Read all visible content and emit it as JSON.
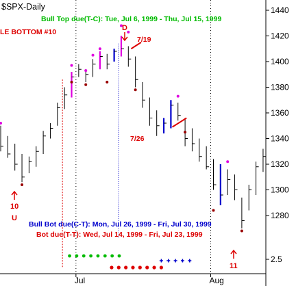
{
  "chart_data": {
    "type": "line",
    "title": "$SPX-Daily",
    "colors": {
      "bar": "#000000",
      "magenta": "#e000e0",
      "blue": "#0000cc",
      "green": "#00bb00",
      "red": "#dd0000",
      "darkred": "#990000",
      "grid": "#000000"
    },
    "y_ticks": [
      1280,
      1300,
      1320,
      1340,
      1360,
      1380,
      1400,
      1420,
      1440
    ],
    "ylim": [
      1264,
      1448
    ],
    "lower_panel_tick": "2.5",
    "x_tick_labels": [
      {
        "label": "Jul",
        "index": 11
      },
      {
        "label": "Aug",
        "index": 30
      }
    ],
    "ohlc": [
      [
        1350,
        1330,
        1334,
        null
      ],
      [
        1342,
        1325,
        1328,
        null
      ],
      [
        1336,
        1315,
        1320,
        null
      ],
      [
        1328,
        1306,
        1310,
        null
      ],
      [
        1326,
        1313,
        1322,
        null
      ],
      [
        1334,
        1318,
        1330,
        null
      ],
      [
        1346,
        1328,
        1342,
        null
      ],
      [
        1352,
        1340,
        1348,
        null
      ],
      [
        1368,
        1350,
        1364,
        null
      ],
      [
        1380,
        1363,
        1374,
        null
      ],
      [
        1392,
        1372,
        1388,
        "magenta"
      ],
      [
        1398,
        1388,
        1394,
        null
      ],
      [
        1394,
        1384,
        1390,
        null
      ],
      [
        1402,
        1388,
        1398,
        null
      ],
      [
        1408,
        1394,
        1404,
        "magenta"
      ],
      [
        1406,
        1394,
        1398,
        null
      ],
      [
        1410,
        1400,
        1408,
        "blue"
      ],
      [
        1420,
        1404,
        1410,
        "magenta"
      ],
      [
        1412,
        1396,
        1402,
        null
      ],
      [
        1404,
        1380,
        1386,
        null
      ],
      [
        1384,
        1364,
        1370,
        null
      ],
      [
        1372,
        1350,
        1356,
        null
      ],
      [
        1362,
        1342,
        1350,
        null
      ],
      [
        1356,
        1344,
        1352,
        "blue"
      ],
      [
        1370,
        1348,
        1366,
        "blue"
      ],
      [
        1368,
        1354,
        1358,
        null
      ],
      [
        1356,
        1334,
        1340,
        null
      ],
      [
        1348,
        1330,
        1336,
        null
      ],
      [
        1340,
        1322,
        1326,
        null
      ],
      [
        1334,
        1316,
        1318,
        null
      ],
      [
        1324,
        1300,
        1304,
        null
      ],
      [
        1320,
        1288,
        1296,
        "blue"
      ],
      [
        1316,
        1296,
        1308,
        null
      ],
      [
        1312,
        1292,
        1300,
        null
      ],
      [
        1294,
        1270,
        1276,
        null
      ],
      [
        1304,
        1284,
        1300,
        null
      ],
      [
        1322,
        1296,
        1318,
        null
      ],
      [
        1332,
        1314,
        1326,
        null
      ]
    ],
    "pivot_highs": [
      {
        "index": 0,
        "value": 1352
      },
      {
        "index": 10,
        "value": 1397
      },
      {
        "index": 12,
        "value": 1393
      },
      {
        "index": 13,
        "value": 1405
      },
      {
        "index": 14,
        "value": 1410
      },
      {
        "index": 17,
        "value": 1428
      },
      {
        "index": 18,
        "value": 1423
      },
      {
        "index": 25,
        "value": 1373
      },
      {
        "index": 32,
        "value": 1322
      }
    ],
    "pivot_lows": [
      {
        "index": 3,
        "value": 1304
      },
      {
        "index": 10,
        "value": 1384
      },
      {
        "index": 12,
        "value": 1382
      },
      {
        "index": 15,
        "value": 1384
      },
      {
        "index": 19,
        "value": 1378
      },
      {
        "index": 26,
        "value": 1345
      },
      {
        "index": 30,
        "value": 1284
      },
      {
        "index": 34,
        "value": 1268
      }
    ],
    "trend_lines": [
      {
        "from": [
          18.4,
          1410
        ],
        "to": [
          19.8,
          1415
        ]
      },
      {
        "from": [
          24.2,
          1349
        ],
        "to": [
          26.2,
          1356
        ]
      }
    ],
    "annotations": [
      {
        "name": "bull-top-due",
        "text": "Bull Top due(T-C): Tue, Jul 6, 1999 - Thu, Jul 15, 1999",
        "color": "#00bb00"
      },
      {
        "name": "double-bottom",
        "text": "LE BOTTOM #10",
        "color": "#dd0000"
      },
      {
        "name": "label-d",
        "text": "D",
        "color": "#dd0000"
      },
      {
        "name": "label-7-19",
        "text": "7/19",
        "color": "#dd0000"
      },
      {
        "name": "label-7-26",
        "text": "7/26",
        "color": "#dd0000"
      },
      {
        "name": "bull-bot-due",
        "text": "Bull Bot due(C-T): Mon, Jul 26, 1999 - Fri, Jul 30, 1999",
        "color": "#0000cc"
      },
      {
        "name": "bot-due",
        "text": "Bot due(T-T): Wed, Jul 14, 1999 - Fri, Jul 23, 1999",
        "color": "#dd0000"
      },
      {
        "name": "label-10",
        "text": "10",
        "color": "#dd0000"
      },
      {
        "name": "label-u",
        "text": "U",
        "color": "#dd0000"
      },
      {
        "name": "label-11",
        "text": "11",
        "color": "#dd0000"
      }
    ],
    "lower_dots": {
      "green": [
        13,
        14,
        15,
        16,
        17,
        18,
        19,
        20
      ],
      "red": [
        17,
        18,
        19,
        20,
        21,
        22,
        23,
        24
      ],
      "blue_plus": [
        24,
        25,
        26,
        27,
        28
      ]
    }
  }
}
